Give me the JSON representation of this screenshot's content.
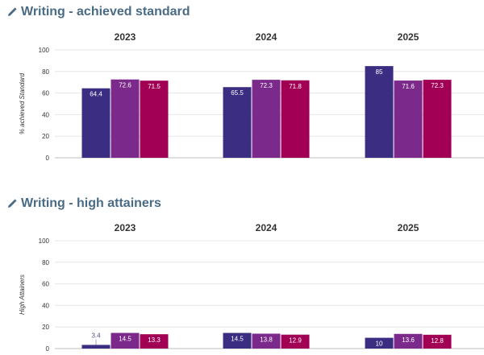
{
  "sections": [
    {
      "title": "Writing - achieved standard",
      "icon": "pencil-icon"
    },
    {
      "title": "Writing - high attainers",
      "icon": "pencil-icon"
    }
  ],
  "colors": {
    "title": "#4a6b85",
    "series": [
      "#3a2d82",
      "#7b2a8b",
      "#a10055"
    ],
    "grid": "#e6e6e6"
  },
  "chart_data": [
    {
      "type": "bar",
      "title": "Writing - achieved standard",
      "ylabel": "% achieved Standard",
      "ylim": [
        0,
        100
      ],
      "yticks": [
        0,
        20,
        40,
        60,
        80,
        100
      ],
      "grid": true,
      "categories": [
        "2023",
        "2024",
        "2025"
      ],
      "series": [
        {
          "values": [
            64.4,
            65.5,
            85
          ]
        },
        {
          "values": [
            72.6,
            72.3,
            71.6
          ]
        },
        {
          "values": [
            71.5,
            71.8,
            72.3
          ]
        }
      ]
    },
    {
      "type": "bar",
      "title": "Writing - high attainers",
      "ylabel": "High Attainers",
      "ylim": [
        0,
        100
      ],
      "yticks": [
        0,
        20,
        40,
        60,
        80,
        100
      ],
      "grid": true,
      "categories": [
        "2023",
        "2024",
        "2025"
      ],
      "series": [
        {
          "values": [
            3.4,
            14.5,
            10
          ]
        },
        {
          "values": [
            14.5,
            13.8,
            13.6
          ]
        },
        {
          "values": [
            13.3,
            12.9,
            12.8
          ]
        }
      ]
    }
  ]
}
